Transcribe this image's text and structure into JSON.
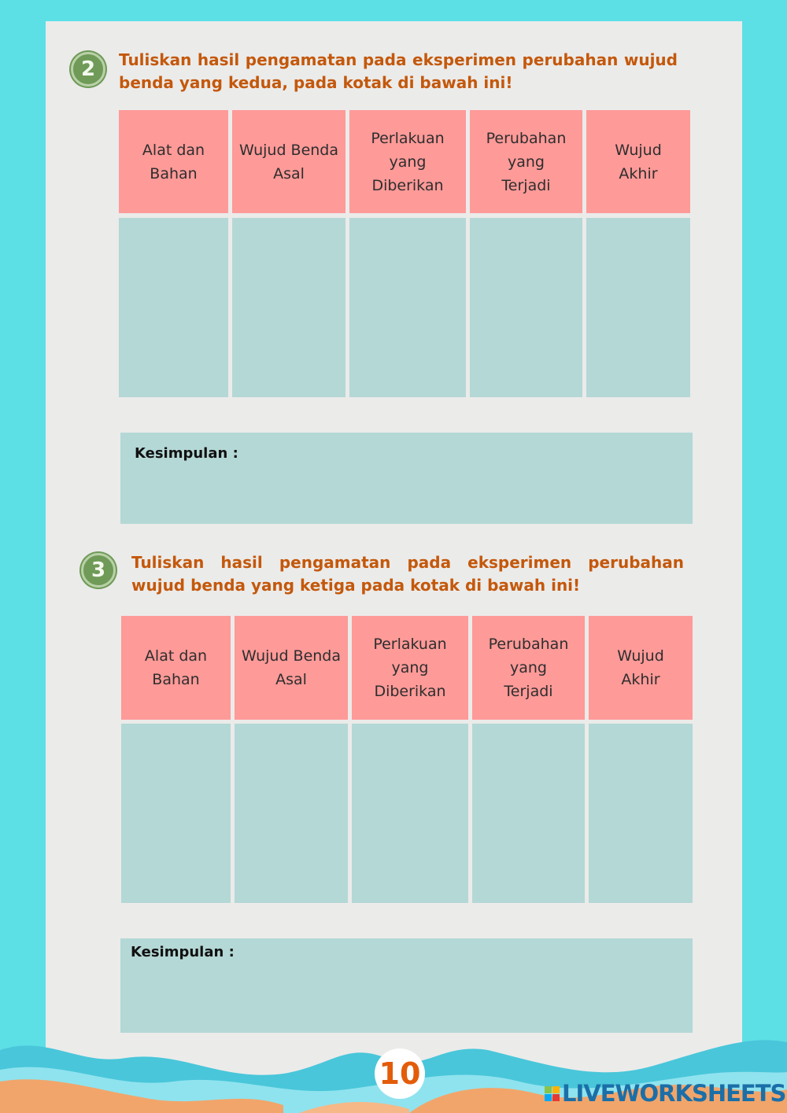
{
  "sections": [
    {
      "number": "2",
      "instruction": "Tuliskan hasil pengamatan pada eksperimen perubahan wujud benda yang kedua, pada kotak di bawah ini!",
      "headers": [
        "Alat dan Bahan",
        "Wujud Benda Asal",
        "Perlakuan yang Diberikan",
        "Perubahan yang Terjadi",
        "Wujud Akhir"
      ],
      "conclusion_label": "Kesimpulan :"
    },
    {
      "number": "3",
      "instruction": "Tuliskan hasil pengamatan pada eksperimen perubahan wujud benda yang ketiga pada kotak di bawah ini!",
      "headers": [
        "Alat dan Bahan",
        "Wujud Benda Asal",
        "Perlakuan yang Diberikan",
        "Perubahan yang Terjadi",
        "Wujud Akhir"
      ],
      "conclusion_label": "Kesimpulan :"
    }
  ],
  "page_number": "10",
  "watermark": "LIVEWORKSHEETS",
  "colors": {
    "background": "#5ddfe6",
    "header_cell": "#fe9a98",
    "body_cell": "#b4d8d6",
    "instruction_text": "#c4580b",
    "number_badge": "#6f9a57"
  }
}
